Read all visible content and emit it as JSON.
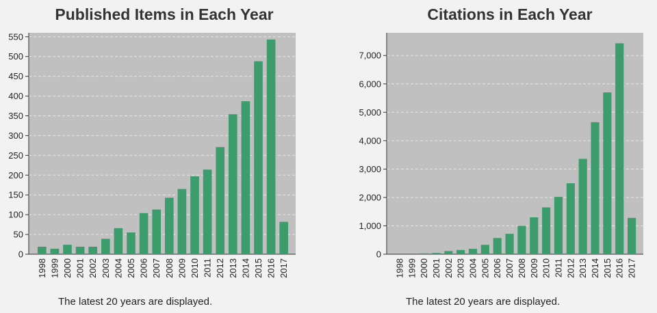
{
  "charts": [
    {
      "id": "published",
      "caption": "The latest 20 years are displayed.",
      "chart_data": {
        "type": "bar",
        "title": "Published Items in Each Year",
        "xlabel": "",
        "ylabel": "",
        "categories": [
          "1998",
          "1999",
          "2000",
          "2001",
          "2002",
          "2003",
          "2004",
          "2005",
          "2006",
          "2007",
          "2008",
          "2009",
          "2010",
          "2011",
          "2012",
          "2013",
          "2014",
          "2015",
          "2016",
          "2017"
        ],
        "values": [
          19,
          14,
          24,
          19,
          19,
          39,
          66,
          55,
          104,
          113,
          143,
          165,
          197,
          214,
          271,
          354,
          387,
          488,
          543,
          82
        ],
        "ylim": [
          0,
          560
        ],
        "yticks": [
          0,
          50,
          100,
          150,
          200,
          250,
          300,
          350,
          400,
          450,
          500,
          550
        ],
        "ytick_labels": [
          "0",
          "50",
          "100",
          "150",
          "200",
          "250",
          "300",
          "350",
          "400",
          "450",
          "500",
          "550"
        ],
        "grid": true,
        "bar_color": "#3d9c6b",
        "plot_bg": "#c0c0c0"
      }
    },
    {
      "id": "citations",
      "caption": "The latest 20 years are displayed.",
      "chart_data": {
        "type": "bar",
        "title": "Citations in Each Year",
        "xlabel": "",
        "ylabel": "",
        "categories": [
          "1998",
          "1999",
          "2000",
          "2001",
          "2002",
          "2003",
          "2004",
          "2005",
          "2006",
          "2007",
          "2008",
          "2009",
          "2010",
          "2011",
          "2012",
          "2013",
          "2014",
          "2015",
          "2016",
          "2017"
        ],
        "values": [
          0,
          0,
          30,
          45,
          110,
          150,
          190,
          330,
          570,
          720,
          1000,
          1300,
          1650,
          2020,
          2500,
          3360,
          4650,
          5700,
          7430,
          1280
        ],
        "ylim": [
          0,
          7800
        ],
        "yticks": [
          0,
          1000,
          2000,
          3000,
          4000,
          5000,
          6000,
          7000
        ],
        "ytick_labels": [
          "0",
          "1,000",
          "2,000",
          "3,000",
          "4,000",
          "5,000",
          "6,000",
          "7,000"
        ],
        "grid": true,
        "bar_color": "#3d9c6b",
        "plot_bg": "#c0c0c0"
      }
    }
  ]
}
